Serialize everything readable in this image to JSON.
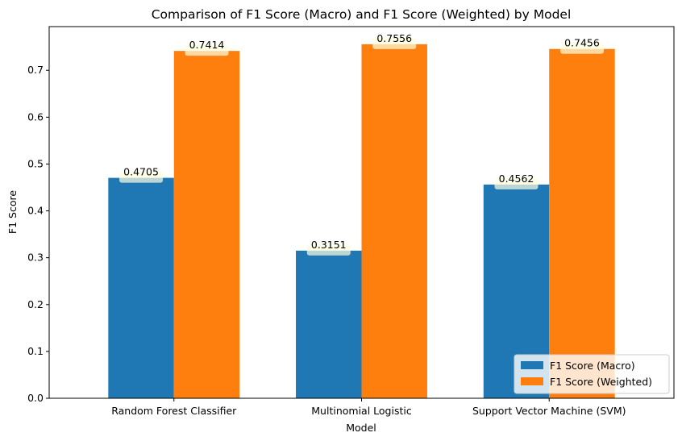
{
  "chart_data": {
    "type": "bar",
    "title": "Comparison of F1 Score (Macro) and F1 Score (Weighted) by Model",
    "xlabel": "Model",
    "ylabel": "F1 Score",
    "categories": [
      "Random Forest Classifier",
      "Multinomial Logistic",
      "Support Vector Machine (SVM)"
    ],
    "series": [
      {
        "name": "F1 Score (Macro)",
        "values": [
          0.4705,
          0.3151,
          0.4562
        ],
        "labels": [
          "0.4705",
          "0.3151",
          "0.4562"
        ],
        "color": "#1f77b4"
      },
      {
        "name": "F1 Score (Weighted)",
        "values": [
          0.7414,
          0.7556,
          0.7456
        ],
        "labels": [
          "0.7414",
          "0.7556",
          "0.7456"
        ],
        "color": "#ff7f0e"
      }
    ],
    "ylim": [
      0,
      0.7933
    ],
    "yticks": [
      "0.0",
      "0.1",
      "0.2",
      "0.3",
      "0.4",
      "0.5",
      "0.6",
      "0.7"
    ],
    "grid": false,
    "legend_position": "bottom-right"
  }
}
